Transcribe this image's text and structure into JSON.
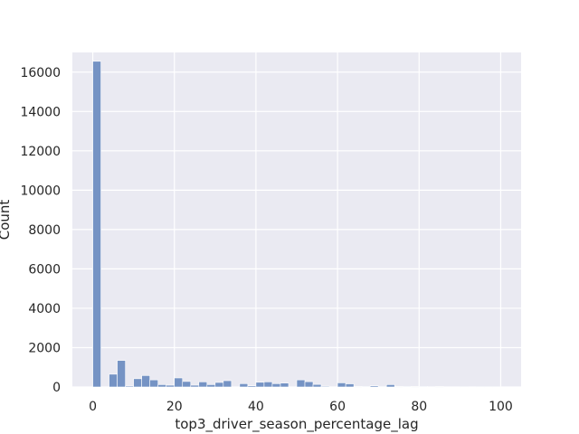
{
  "chart_data": {
    "type": "bar",
    "title": "",
    "xlabel": "top3_driver_season_percentage_lag",
    "ylabel": "Count",
    "xlim": [
      -5,
      105
    ],
    "ylim": [
      0,
      17000
    ],
    "grid": true,
    "bar_color": "#7593c4",
    "background_color": "#eaeaf2",
    "bin_width": 2,
    "xticks": [
      0,
      20,
      40,
      60,
      80,
      100
    ],
    "yticks": [
      0,
      2000,
      4000,
      6000,
      8000,
      10000,
      12000,
      14000,
      16000
    ],
    "x": [
      0,
      2,
      4,
      6,
      8,
      10,
      12,
      14,
      16,
      18,
      20,
      22,
      24,
      26,
      28,
      30,
      32,
      34,
      36,
      38,
      40,
      42,
      44,
      46,
      48,
      50,
      52,
      54,
      56,
      58,
      60,
      62,
      64,
      66,
      68,
      70,
      72,
      74,
      76,
      78,
      80,
      82,
      84,
      86,
      88,
      90,
      92,
      94,
      96,
      98
    ],
    "values": [
      16550,
      0,
      650,
      1350,
      50,
      420,
      580,
      360,
      120,
      90,
      460,
      280,
      90,
      260,
      120,
      230,
      320,
      0,
      170,
      60,
      240,
      260,
      170,
      200,
      0,
      360,
      270,
      130,
      40,
      0,
      210,
      160,
      20,
      30,
      60,
      30,
      120,
      20,
      30,
      20,
      30,
      10,
      20,
      10,
      10,
      5,
      10,
      5,
      5,
      5
    ]
  }
}
